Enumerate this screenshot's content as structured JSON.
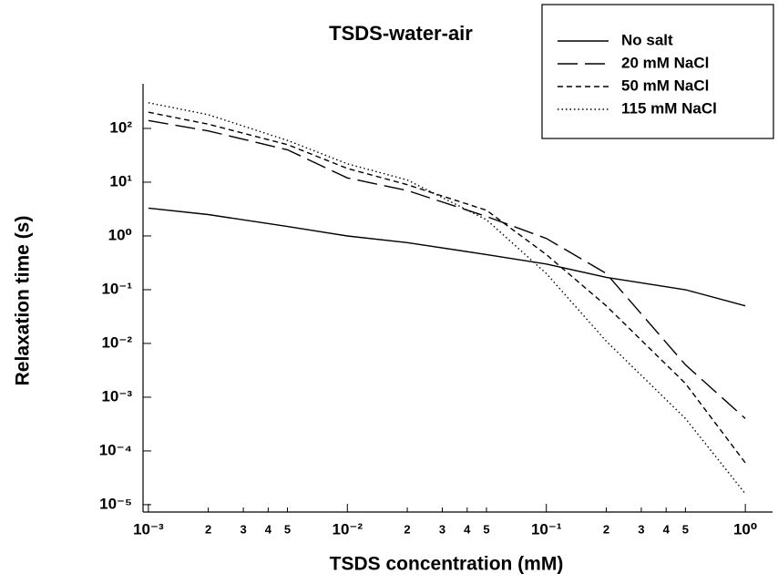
{
  "chart_data": {
    "type": "line",
    "title": "TSDS-water-air",
    "x_label": "TSDS concentration (mM)",
    "y_label": "Relaxation time (s)",
    "x_log": true,
    "y_log": true,
    "legend": "top-right",
    "x": [
      0.001,
      0.002,
      0.005,
      0.01,
      0.02,
      0.05,
      0.1,
      0.2,
      0.5,
      1
    ],
    "series": [
      {
        "name": "No salt",
        "color": "#000000",
        "dash": "solid",
        "values": [
          3.3,
          2.5,
          1.5,
          1.0,
          0.75,
          0.45,
          0.3,
          0.17,
          0.1,
          0.05
        ]
      },
      {
        "name": "20 mM NaCl",
        "color": "#000000",
        "dash": "long",
        "values": [
          140,
          90,
          40,
          12,
          7,
          2.3,
          0.9,
          0.2,
          0.004,
          0.0004
        ]
      },
      {
        "name": "50 mM NaCl",
        "color": "#000000",
        "dash": "short",
        "values": [
          200,
          120,
          50,
          18,
          9,
          3,
          0.45,
          0.05,
          0.0018,
          6e-05
        ]
      },
      {
        "name": "115 mM NaCl",
        "color": "#000000",
        "dash": "dotted",
        "values": [
          300,
          180,
          60,
          22,
          11,
          2,
          0.2,
          0.011,
          0.0004,
          1.6e-05
        ]
      }
    ],
    "xlim": [
      0.00094,
      1.37
    ],
    "ylim": [
      7.3e-06,
      676
    ],
    "xticks": [
      {
        "value": 0.001,
        "label": "10⁻³"
      },
      {
        "value": 0.002,
        "label": "2"
      },
      {
        "value": 0.003,
        "label": "3"
      },
      {
        "value": 0.004,
        "label": "4"
      },
      {
        "value": 0.005,
        "label": "5"
      },
      {
        "value": 0.01,
        "label": "10⁻²"
      },
      {
        "value": 0.02,
        "label": "2"
      },
      {
        "value": 0.03,
        "label": "3"
      },
      {
        "value": 0.04,
        "label": "4"
      },
      {
        "value": 0.05,
        "label": "5"
      },
      {
        "value": 0.1,
        "label": "10⁻¹"
      },
      {
        "value": 0.2,
        "label": "2"
      },
      {
        "value": 0.3,
        "label": "3"
      },
      {
        "value": 0.4,
        "label": "4"
      },
      {
        "value": 0.5,
        "label": "5"
      },
      {
        "value": 1,
        "label": "10⁰"
      }
    ],
    "yticks": [
      {
        "value": 1e-05,
        "label": "10⁻⁵"
      },
      {
        "value": 0.0001,
        "label": "10⁻⁴"
      },
      {
        "value": 0.001,
        "label": "10⁻³"
      },
      {
        "value": 0.01,
        "label": "10⁻²"
      },
      {
        "value": 0.1,
        "label": "10⁻¹"
      },
      {
        "value": 1,
        "label": "10⁰"
      },
      {
        "value": 10,
        "label": "10¹"
      },
      {
        "value": 100,
        "label": "10²"
      }
    ]
  }
}
